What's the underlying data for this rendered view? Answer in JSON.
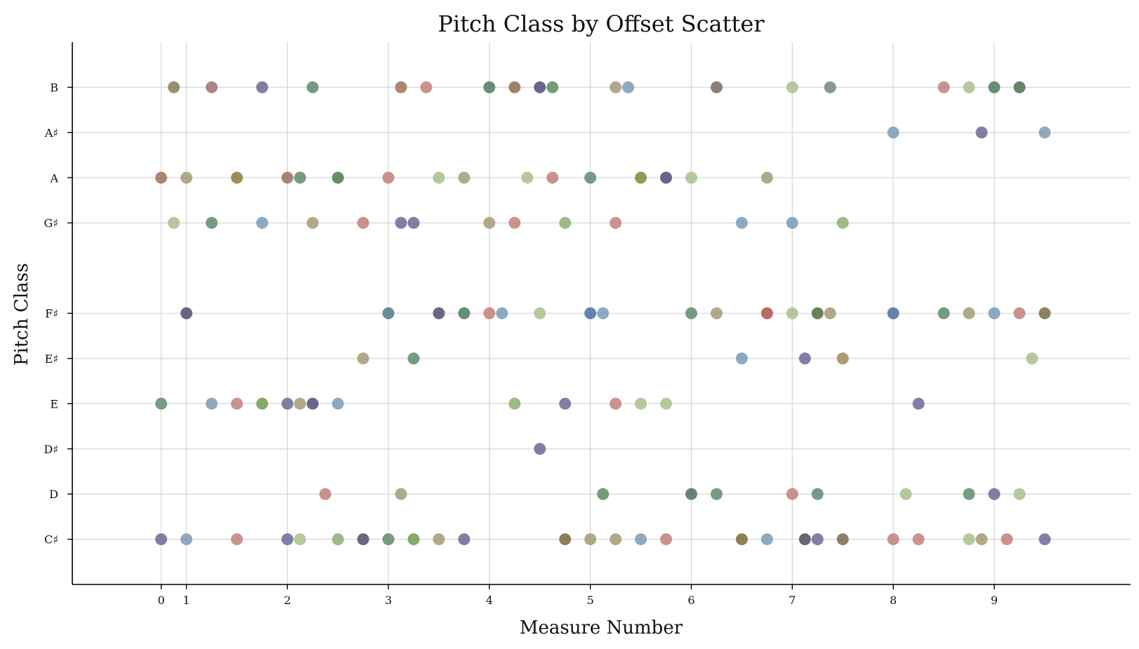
{
  "chart_data": {
    "type": "scatter",
    "title": "Pitch Class by Offset Scatter",
    "xlabel": "Measure Number",
    "ylabel": "Pitch Class",
    "x_ticks": [
      {
        "value": 0,
        "label": "0"
      },
      {
        "value": 0.25,
        "label": "1"
      },
      {
        "value": 1.25,
        "label": "2"
      },
      {
        "value": 2.25,
        "label": "3"
      },
      {
        "value": 3.25,
        "label": "4"
      },
      {
        "value": 4.25,
        "label": "5"
      },
      {
        "value": 5.25,
        "label": "6"
      },
      {
        "value": 6.25,
        "label": "7"
      },
      {
        "value": 7.25,
        "label": "8"
      },
      {
        "value": 8.25,
        "label": "9"
      }
    ],
    "y_ticks": [
      {
        "value": 1,
        "label": "C♯"
      },
      {
        "value": 2,
        "label": "D"
      },
      {
        "value": 3,
        "label": "D♯"
      },
      {
        "value": 4,
        "label": "E"
      },
      {
        "value": 5,
        "label": "E♯"
      },
      {
        "value": 6,
        "label": "F♯"
      },
      {
        "value": 8,
        "label": "G♯"
      },
      {
        "value": 9,
        "label": "A"
      },
      {
        "value": 10,
        "label": "A♯"
      },
      {
        "value": 11,
        "label": "B"
      }
    ],
    "xlim": [
      -0.88,
      9.6
    ],
    "ylim": [
      0,
      12
    ],
    "grid": true,
    "palette": [
      "#6a6a94",
      "#7a9bb5",
      "#c0807a",
      "#8fae6e",
      "#a59a78",
      "#5e8b6e",
      "#8b7a5a",
      "#4e6e4e",
      "#a8c08a"
    ],
    "points": [
      {
        "x": 0.125,
        "y": 11,
        "c": "#8b7a5a"
      },
      {
        "x": 0.5,
        "y": 11,
        "c": "#a07070"
      },
      {
        "x": 1.0,
        "y": 11,
        "c": "#6a6a94"
      },
      {
        "x": 1.5,
        "y": 11,
        "c": "#5e8b6e"
      },
      {
        "x": 2.375,
        "y": 11,
        "c": "#a0705a"
      },
      {
        "x": 2.625,
        "y": 11,
        "c": "#c0807a"
      },
      {
        "x": 3.25,
        "y": 11,
        "c": "#4e7a5e"
      },
      {
        "x": 3.5,
        "y": 11,
        "c": "#8b6e4e"
      },
      {
        "x": 3.75,
        "y": 11,
        "c": "#4e4e7a"
      },
      {
        "x": 3.875,
        "y": 11,
        "c": "#5e8b5e"
      },
      {
        "x": 4.5,
        "y": 11,
        "c": "#a59a78"
      },
      {
        "x": 4.625,
        "y": 11,
        "c": "#7a9bb5"
      },
      {
        "x": 5.5,
        "y": 11,
        "c": "#7a6a5a"
      },
      {
        "x": 6.25,
        "y": 11,
        "c": "#a8c08a"
      },
      {
        "x": 6.625,
        "y": 11,
        "c": "#6e8b7a"
      },
      {
        "x": 7.75,
        "y": 11,
        "c": "#c0807a"
      },
      {
        "x": 8.0,
        "y": 11,
        "c": "#a8c08a"
      },
      {
        "x": 8.25,
        "y": 11,
        "c": "#4e7a5e"
      },
      {
        "x": 8.5,
        "y": 11,
        "c": "#4e6e4e"
      },
      {
        "x": 7.25,
        "y": 10,
        "c": "#7a9bb5"
      },
      {
        "x": 8.125,
        "y": 10,
        "c": "#6a6a94"
      },
      {
        "x": 8.75,
        "y": 10,
        "c": "#7a9bb5"
      },
      {
        "x": 0.0,
        "y": 9,
        "c": "#a0705a"
      },
      {
        "x": 0.25,
        "y": 9,
        "c": "#a59a78"
      },
      {
        "x": 0.75,
        "y": 9,
        "c": "#8b7a3a"
      },
      {
        "x": 1.25,
        "y": 9,
        "c": "#a0705a"
      },
      {
        "x": 1.375,
        "y": 9,
        "c": "#5e8b6e"
      },
      {
        "x": 1.75,
        "y": 9,
        "c": "#4e7a4e"
      },
      {
        "x": 2.25,
        "y": 9,
        "c": "#c0807a"
      },
      {
        "x": 2.75,
        "y": 9,
        "c": "#a8c08a"
      },
      {
        "x": 3.0,
        "y": 9,
        "c": "#a59a78"
      },
      {
        "x": 3.625,
        "y": 9,
        "c": "#a8c08a"
      },
      {
        "x": 3.875,
        "y": 9,
        "c": "#c0807a"
      },
      {
        "x": 4.25,
        "y": 9,
        "c": "#5e8b6e"
      },
      {
        "x": 4.75,
        "y": 9,
        "c": "#7a8b3a"
      },
      {
        "x": 5.0,
        "y": 9,
        "c": "#4e4e7a"
      },
      {
        "x": 5.25,
        "y": 9,
        "c": "#a8c08a"
      },
      {
        "x": 6.0,
        "y": 9,
        "c": "#a59a78"
      },
      {
        "x": 0.125,
        "y": 8,
        "c": "#a8c08a"
      },
      {
        "x": 0.5,
        "y": 8,
        "c": "#5e8b6e"
      },
      {
        "x": 1.0,
        "y": 8,
        "c": "#7a9bb5"
      },
      {
        "x": 1.5,
        "y": 8,
        "c": "#a59a78"
      },
      {
        "x": 2.0,
        "y": 8,
        "c": "#c0807a"
      },
      {
        "x": 2.375,
        "y": 8,
        "c": "#6a6a94"
      },
      {
        "x": 2.5,
        "y": 8,
        "c": "#6a6a94"
      },
      {
        "x": 3.25,
        "y": 8,
        "c": "#a59a78"
      },
      {
        "x": 3.5,
        "y": 8,
        "c": "#c0807a"
      },
      {
        "x": 4.0,
        "y": 8,
        "c": "#8fae6e"
      },
      {
        "x": 4.5,
        "y": 8,
        "c": "#c0807a"
      },
      {
        "x": 5.75,
        "y": 8,
        "c": "#7a9bb5"
      },
      {
        "x": 6.25,
        "y": 8,
        "c": "#7a9bb5"
      },
      {
        "x": 6.75,
        "y": 8,
        "c": "#8fae6e"
      },
      {
        "x": 0.25,
        "y": 6,
        "c": "#4e4e6e"
      },
      {
        "x": 2.25,
        "y": 6,
        "c": "#4e7a8b"
      },
      {
        "x": 2.75,
        "y": 6,
        "c": "#4e4e6e"
      },
      {
        "x": 3.0,
        "y": 6,
        "c": "#4e7a5e"
      },
      {
        "x": 3.25,
        "y": 6,
        "c": "#c0807a"
      },
      {
        "x": 3.375,
        "y": 6,
        "c": "#7a9bb5"
      },
      {
        "x": 3.75,
        "y": 6,
        "c": "#a8c08a"
      },
      {
        "x": 4.25,
        "y": 6,
        "c": "#4e6e9b"
      },
      {
        "x": 4.375,
        "y": 6,
        "c": "#7a9bb5"
      },
      {
        "x": 5.25,
        "y": 6,
        "c": "#5e8b6e"
      },
      {
        "x": 5.5,
        "y": 6,
        "c": "#a59a78"
      },
      {
        "x": 6.0,
        "y": 6,
        "c": "#b0504a"
      },
      {
        "x": 6.25,
        "y": 6,
        "c": "#a8c08a"
      },
      {
        "x": 6.5,
        "y": 6,
        "c": "#4e6e3a"
      },
      {
        "x": 6.625,
        "y": 6,
        "c": "#a59a78"
      },
      {
        "x": 7.25,
        "y": 6,
        "c": "#4e6e9b"
      },
      {
        "x": 7.75,
        "y": 6,
        "c": "#5e8b6e"
      },
      {
        "x": 8.0,
        "y": 6,
        "c": "#a59a78"
      },
      {
        "x": 8.25,
        "y": 6,
        "c": "#7a9bb5"
      },
      {
        "x": 8.5,
        "y": 6,
        "c": "#c0807a"
      },
      {
        "x": 8.75,
        "y": 6,
        "c": "#7a6a4a"
      },
      {
        "x": 2.0,
        "y": 5,
        "c": "#a59a78"
      },
      {
        "x": 2.5,
        "y": 5,
        "c": "#5e8b6e"
      },
      {
        "x": 5.75,
        "y": 5,
        "c": "#7a9bb5"
      },
      {
        "x": 6.375,
        "y": 5,
        "c": "#6a6a94"
      },
      {
        "x": 6.75,
        "y": 5,
        "c": "#a08a5a"
      },
      {
        "x": 8.625,
        "y": 5,
        "c": "#a8c08a"
      },
      {
        "x": 0.0,
        "y": 4,
        "c": "#5e8b6e"
      },
      {
        "x": 0.5,
        "y": 4,
        "c": "#7a9bb5"
      },
      {
        "x": 0.75,
        "y": 4,
        "c": "#c0807a"
      },
      {
        "x": 1.0,
        "y": 4,
        "c": "#6e9b4e"
      },
      {
        "x": 1.25,
        "y": 4,
        "c": "#6a6a94"
      },
      {
        "x": 1.375,
        "y": 4,
        "c": "#a59a78"
      },
      {
        "x": 1.5,
        "y": 4,
        "c": "#4e4e7a"
      },
      {
        "x": 1.75,
        "y": 4,
        "c": "#7a9bb5"
      },
      {
        "x": 3.5,
        "y": 4,
        "c": "#8fae6e"
      },
      {
        "x": 4.0,
        "y": 4,
        "c": "#6a6a94"
      },
      {
        "x": 4.5,
        "y": 4,
        "c": "#c0807a"
      },
      {
        "x": 4.75,
        "y": 4,
        "c": "#a8c08a"
      },
      {
        "x": 5.0,
        "y": 4,
        "c": "#a8c08a"
      },
      {
        "x": 7.5,
        "y": 4,
        "c": "#6a6a94"
      },
      {
        "x": 3.75,
        "y": 3,
        "c": "#6a6a94"
      },
      {
        "x": 1.625,
        "y": 2,
        "c": "#c0807a"
      },
      {
        "x": 2.375,
        "y": 2,
        "c": "#a59a78"
      },
      {
        "x": 4.375,
        "y": 2,
        "c": "#5e8b5e"
      },
      {
        "x": 5.25,
        "y": 2,
        "c": "#4e6e5e"
      },
      {
        "x": 5.5,
        "y": 2,
        "c": "#5e8b6e"
      },
      {
        "x": 6.25,
        "y": 2,
        "c": "#c0807a"
      },
      {
        "x": 6.5,
        "y": 2,
        "c": "#5e8b6e"
      },
      {
        "x": 7.375,
        "y": 2,
        "c": "#a8c08a"
      },
      {
        "x": 8.0,
        "y": 2,
        "c": "#5e8b6e"
      },
      {
        "x": 8.25,
        "y": 2,
        "c": "#6a6a94"
      },
      {
        "x": 8.5,
        "y": 2,
        "c": "#a8c08a"
      },
      {
        "x": 0.0,
        "y": 1,
        "c": "#6a6a94"
      },
      {
        "x": 0.25,
        "y": 1,
        "c": "#7a9bb5"
      },
      {
        "x": 0.75,
        "y": 1,
        "c": "#c0807a"
      },
      {
        "x": 1.25,
        "y": 1,
        "c": "#6a6a94"
      },
      {
        "x": 1.375,
        "y": 1,
        "c": "#a8c08a"
      },
      {
        "x": 1.75,
        "y": 1,
        "c": "#8fae6e"
      },
      {
        "x": 2.0,
        "y": 1,
        "c": "#4e4e6e"
      },
      {
        "x": 2.25,
        "y": 1,
        "c": "#5e8b6e"
      },
      {
        "x": 2.5,
        "y": 1,
        "c": "#6e9b4e"
      },
      {
        "x": 2.75,
        "y": 1,
        "c": "#a59a78"
      },
      {
        "x": 3.0,
        "y": 1,
        "c": "#6a6a94"
      },
      {
        "x": 4.0,
        "y": 1,
        "c": "#7a6a3a"
      },
      {
        "x": 4.25,
        "y": 1,
        "c": "#a59a78"
      },
      {
        "x": 4.5,
        "y": 1,
        "c": "#a59a78"
      },
      {
        "x": 4.75,
        "y": 1,
        "c": "#7a9bb5"
      },
      {
        "x": 5.0,
        "y": 1,
        "c": "#c0807a"
      },
      {
        "x": 5.75,
        "y": 1,
        "c": "#7a6a3a"
      },
      {
        "x": 6.0,
        "y": 1,
        "c": "#7a9bb5"
      },
      {
        "x": 6.375,
        "y": 1,
        "c": "#4e4e5e"
      },
      {
        "x": 6.5,
        "y": 1,
        "c": "#6a6a94"
      },
      {
        "x": 6.75,
        "y": 1,
        "c": "#7a6a4a"
      },
      {
        "x": 7.25,
        "y": 1,
        "c": "#c0807a"
      },
      {
        "x": 7.5,
        "y": 1,
        "c": "#c0807a"
      },
      {
        "x": 8.0,
        "y": 1,
        "c": "#a8c08a"
      },
      {
        "x": 8.125,
        "y": 1,
        "c": "#a59a78"
      },
      {
        "x": 8.375,
        "y": 1,
        "c": "#c0807a"
      },
      {
        "x": 8.75,
        "y": 1,
        "c": "#6a6a94"
      }
    ]
  }
}
